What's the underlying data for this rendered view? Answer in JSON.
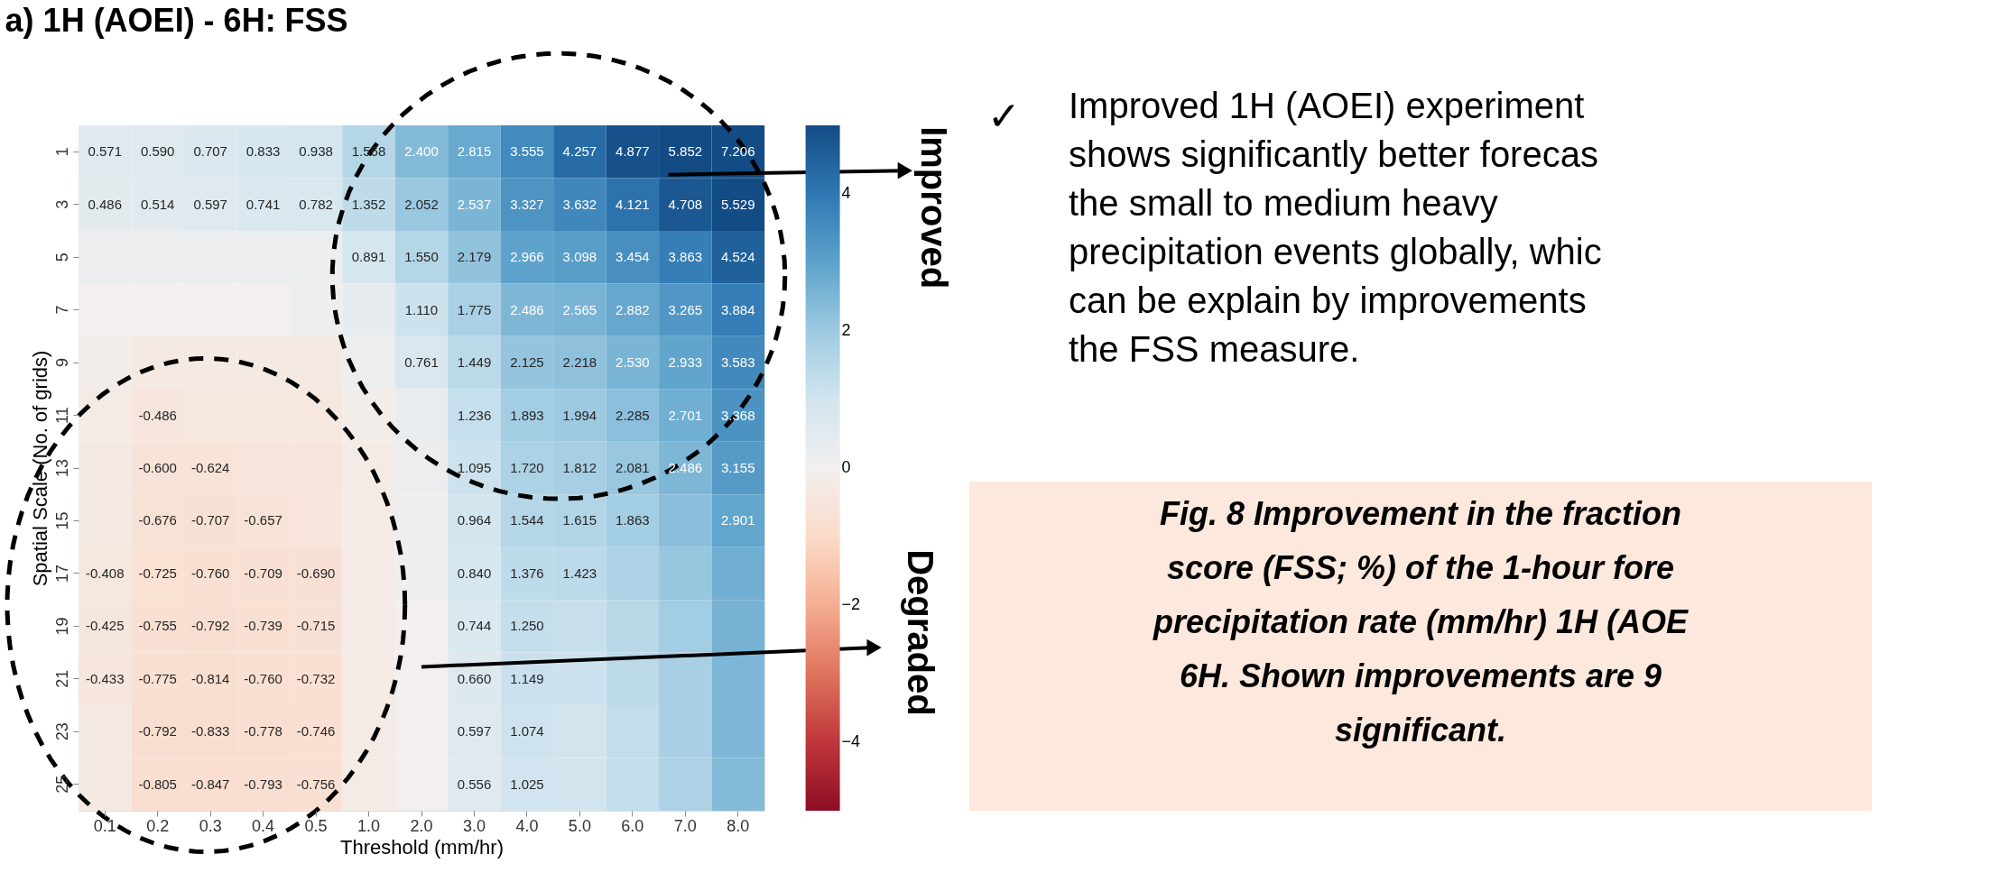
{
  "chart_data": [
    {
      "type": "heatmap",
      "title": "a) 1H (AOEI) - 6H: FSS",
      "xlabel": "Threshold (mm/hr)",
      "ylabel": "Spatial Scale (No. of grids)",
      "categories": [
        "0.1",
        "0.2",
        "0.3",
        "0.4",
        "0.5",
        "1.0",
        "2.0",
        "3.0",
        "4.0",
        "5.0",
        "6.0",
        "7.0",
        "8.0"
      ],
      "y_categories": [
        "1",
        "3",
        "5",
        "7",
        "9",
        "11",
        "13",
        "15",
        "17",
        "19",
        "21",
        "23",
        "25"
      ],
      "cells": [
        [
          0.571,
          0.59,
          0.707,
          0.833,
          0.938,
          1.568,
          2.4,
          2.815,
          3.555,
          4.257,
          4.877,
          5.852,
          7.206
        ],
        [
          0.486,
          0.514,
          0.597,
          0.741,
          0.782,
          1.352,
          2.052,
          2.537,
          3.327,
          3.632,
          4.121,
          4.708,
          5.529
        ],
        [
          0.2,
          0.2,
          0.2,
          0.2,
          0.2,
          0.891,
          1.55,
          2.179,
          2.966,
          3.098,
          3.454,
          3.863,
          4.524
        ],
        [
          0.0,
          0.0,
          0.0,
          0.0,
          0.1,
          0.4,
          1.11,
          1.775,
          2.486,
          2.565,
          2.882,
          3.265,
          3.884
        ],
        [
          -0.1,
          -0.3,
          -0.3,
          -0.3,
          -0.3,
          0.1,
          0.761,
          1.449,
          2.125,
          2.218,
          2.53,
          2.933,
          3.583
        ],
        [
          -0.2,
          -0.486,
          -0.4,
          -0.4,
          -0.4,
          -0.1,
          0.3,
          1.236,
          1.893,
          1.994,
          2.285,
          2.701,
          3.368
        ],
        [
          -0.3,
          -0.6,
          -0.624,
          -0.55,
          -0.5,
          -0.2,
          0.2,
          1.095,
          1.72,
          1.812,
          2.081,
          2.486,
          3.155
        ],
        [
          -0.3,
          -0.676,
          -0.707,
          -0.657,
          -0.55,
          -0.2,
          0.1,
          0.964,
          1.544,
          1.615,
          1.863,
          2.3,
          2.901
        ],
        [
          -0.408,
          -0.725,
          -0.76,
          -0.709,
          -0.69,
          -0.2,
          0.05,
          0.84,
          1.376,
          1.423,
          1.7,
          2.1,
          2.7
        ],
        [
          -0.425,
          -0.755,
          -0.792,
          -0.739,
          -0.715,
          -0.2,
          0.0,
          0.744,
          1.25,
          1.2,
          1.5,
          1.9,
          2.6
        ],
        [
          -0.433,
          -0.775,
          -0.814,
          -0.76,
          -0.732,
          -0.2,
          0.0,
          0.66,
          1.149,
          1.1,
          1.4,
          1.8,
          2.5
        ],
        [
          -0.3,
          -0.792,
          -0.833,
          -0.778,
          -0.746,
          -0.2,
          0.0,
          0.597,
          1.074,
          1.0,
          1.3,
          1.8,
          2.5
        ],
        [
          -0.3,
          -0.805,
          -0.847,
          -0.793,
          -0.756,
          -0.2,
          0.0,
          0.556,
          1.025,
          1.0,
          1.3,
          1.7,
          2.4
        ]
      ],
      "cell_labels": [
        [
          "0.571",
          "0.590",
          "0.707",
          "0.833",
          "0.938",
          "1.568",
          "2.400",
          "2.815",
          "3.555",
          "4.257",
          "4.877",
          "5.852",
          "7.206"
        ],
        [
          "0.486",
          "0.514",
          "0.597",
          "0.741",
          "0.782",
          "1.352",
          "2.052",
          "2.537",
          "3.327",
          "3.632",
          "4.121",
          "4.708",
          "5.529"
        ],
        [
          null,
          null,
          null,
          null,
          null,
          "0.891",
          "1.550",
          "2.179",
          "2.966",
          "3.098",
          "3.454",
          "3.863",
          "4.524"
        ],
        [
          null,
          null,
          null,
          null,
          null,
          null,
          "1.110",
          "1.775",
          "2.486",
          "2.565",
          "2.882",
          "3.265",
          "3.884"
        ],
        [
          null,
          null,
          null,
          null,
          null,
          null,
          "0.761",
          "1.449",
          "2.125",
          "2.218",
          "2.530",
          "2.933",
          "3.583"
        ],
        [
          null,
          "-0.486",
          null,
          null,
          null,
          null,
          null,
          "1.236",
          "1.893",
          "1.994",
          "2.285",
          "2.701",
          "3.368"
        ],
        [
          null,
          "-0.600",
          "-0.624",
          null,
          null,
          null,
          null,
          "1.095",
          "1.720",
          "1.812",
          "2.081",
          "2.486",
          "3.155"
        ],
        [
          null,
          "-0.676",
          "-0.707",
          "-0.657",
          null,
          null,
          null,
          "0.964",
          "1.544",
          "1.615",
          "1.863",
          null,
          "2.901"
        ],
        [
          "-0.408",
          "-0.725",
          "-0.760",
          "-0.709",
          "-0.690",
          null,
          null,
          "0.840",
          "1.376",
          "1.423",
          null,
          null,
          null
        ],
        [
          "-0.425",
          "-0.755",
          "-0.792",
          "-0.739",
          "-0.715",
          null,
          null,
          "0.744",
          "1.250",
          null,
          null,
          null,
          null
        ],
        [
          "-0.433",
          "-0.775",
          "-0.814",
          "-0.760",
          "-0.732",
          null,
          null,
          "0.660",
          "1.149",
          null,
          null,
          null,
          null
        ],
        [
          null,
          "-0.792",
          "-0.833",
          "-0.778",
          "-0.746",
          null,
          null,
          "0.597",
          "1.074",
          null,
          null,
          null,
          null
        ],
        [
          null,
          "-0.805",
          "-0.847",
          "-0.793",
          "-0.756",
          null,
          null,
          "0.556",
          "1.025",
          null,
          null,
          null,
          null
        ]
      ],
      "clim": [
        -5,
        5
      ],
      "cticks": [
        {
          "value": -4,
          "label": "−4"
        },
        {
          "value": -2,
          "label": "−2"
        },
        0,
        2,
        4
      ],
      "annotations": [
        "Improved",
        "Degraded"
      ]
    },
    {
      "type": "other",
      "annotations": [
        "✓",
        "Improved 1H (AOEI) experiment\nshows significantly better forecas\nthe small to medium heavy\nprecipitation events globally, whic\ncan be explain by improvements\nthe FSS measure.",
        "Fig. 8 Improvement in the fraction\nscore (FSS; %) of the 1-hour fore\nprecipitation rate (mm/hr) 1H (AOE\n6H. Shown improvements are 9\nsignificant."
      ]
    }
  ]
}
